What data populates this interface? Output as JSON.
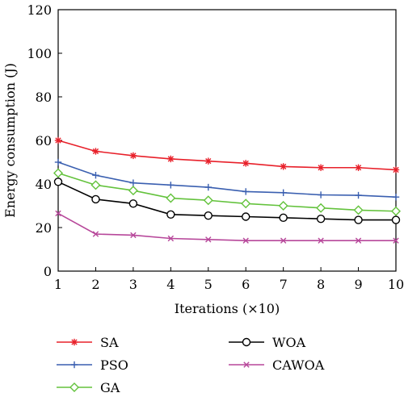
{
  "chart_data": {
    "type": "line",
    "xlabel": "Iterations (×10)",
    "ylabel": "Energy consumption (J)",
    "x": [
      1,
      2,
      3,
      4,
      5,
      6,
      7,
      8,
      9,
      10
    ],
    "xlim": [
      1,
      10
    ],
    "ylim": [
      0,
      120
    ],
    "x_ticks": [
      1,
      2,
      3,
      4,
      5,
      6,
      7,
      8,
      9,
      10
    ],
    "y_ticks": [
      0,
      20,
      40,
      60,
      80,
      100,
      120
    ],
    "grid": false,
    "legend_position": "bottom",
    "series": [
      {
        "name": "SA",
        "color": "#e8202a",
        "marker": "asterisk",
        "values": [
          60,
          55,
          53,
          51.5,
          50.5,
          49.5,
          48,
          47.5,
          47.5,
          46.5
        ]
      },
      {
        "name": "PSO",
        "color": "#3a5fb0",
        "marker": "plus",
        "values": [
          50,
          44,
          40.5,
          39.5,
          38.5,
          36.5,
          36,
          35,
          34.8,
          34
        ]
      },
      {
        "name": "GA",
        "color": "#63c23c",
        "marker": "diamond",
        "values": [
          45,
          39.5,
          37,
          33.5,
          32.5,
          31,
          30,
          29,
          28,
          27.5
        ]
      },
      {
        "name": "WOA",
        "color": "#000000",
        "marker": "circle",
        "values": [
          41,
          33,
          31,
          26,
          25.5,
          25,
          24.5,
          24,
          23.5,
          23.5
        ]
      },
      {
        "name": "CAWOA",
        "color": "#b7479a",
        "marker": "x",
        "values": [
          26.5,
          17,
          16.5,
          15,
          14.5,
          14,
          14,
          14,
          14,
          14
        ]
      }
    ]
  }
}
